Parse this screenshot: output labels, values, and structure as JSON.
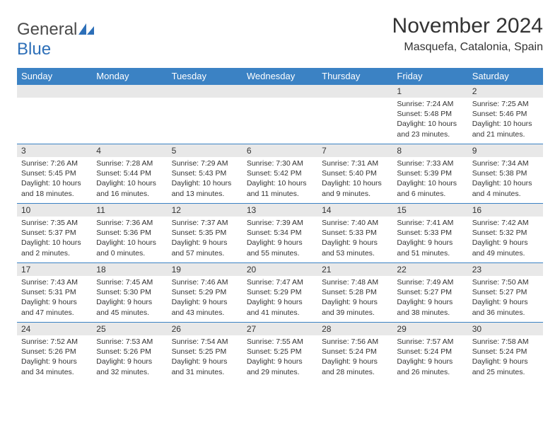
{
  "logo": {
    "text_general": "General",
    "text_blue": "Blue"
  },
  "header": {
    "month_title": "November 2024",
    "location": "Masquefa, Catalonia, Spain"
  },
  "colors": {
    "header_bg": "#3b82c4",
    "header_fg": "#ffffff",
    "daynum_bg": "#e8e8e8",
    "border": "#3b82c4",
    "logo_blue": "#2d6fb8",
    "text": "#333333"
  },
  "weekdays": [
    "Sunday",
    "Monday",
    "Tuesday",
    "Wednesday",
    "Thursday",
    "Friday",
    "Saturday"
  ],
  "weeks": [
    [
      {
        "empty": true
      },
      {
        "empty": true
      },
      {
        "empty": true
      },
      {
        "empty": true
      },
      {
        "empty": true
      },
      {
        "day": "1",
        "sunrise": "Sunrise: 7:24 AM",
        "sunset": "Sunset: 5:48 PM",
        "daylight": "Daylight: 10 hours and 23 minutes."
      },
      {
        "day": "2",
        "sunrise": "Sunrise: 7:25 AM",
        "sunset": "Sunset: 5:46 PM",
        "daylight": "Daylight: 10 hours and 21 minutes."
      }
    ],
    [
      {
        "day": "3",
        "sunrise": "Sunrise: 7:26 AM",
        "sunset": "Sunset: 5:45 PM",
        "daylight": "Daylight: 10 hours and 18 minutes."
      },
      {
        "day": "4",
        "sunrise": "Sunrise: 7:28 AM",
        "sunset": "Sunset: 5:44 PM",
        "daylight": "Daylight: 10 hours and 16 minutes."
      },
      {
        "day": "5",
        "sunrise": "Sunrise: 7:29 AM",
        "sunset": "Sunset: 5:43 PM",
        "daylight": "Daylight: 10 hours and 13 minutes."
      },
      {
        "day": "6",
        "sunrise": "Sunrise: 7:30 AM",
        "sunset": "Sunset: 5:42 PM",
        "daylight": "Daylight: 10 hours and 11 minutes."
      },
      {
        "day": "7",
        "sunrise": "Sunrise: 7:31 AM",
        "sunset": "Sunset: 5:40 PM",
        "daylight": "Daylight: 10 hours and 9 minutes."
      },
      {
        "day": "8",
        "sunrise": "Sunrise: 7:33 AM",
        "sunset": "Sunset: 5:39 PM",
        "daylight": "Daylight: 10 hours and 6 minutes."
      },
      {
        "day": "9",
        "sunrise": "Sunrise: 7:34 AM",
        "sunset": "Sunset: 5:38 PM",
        "daylight": "Daylight: 10 hours and 4 minutes."
      }
    ],
    [
      {
        "day": "10",
        "sunrise": "Sunrise: 7:35 AM",
        "sunset": "Sunset: 5:37 PM",
        "daylight": "Daylight: 10 hours and 2 minutes."
      },
      {
        "day": "11",
        "sunrise": "Sunrise: 7:36 AM",
        "sunset": "Sunset: 5:36 PM",
        "daylight": "Daylight: 10 hours and 0 minutes."
      },
      {
        "day": "12",
        "sunrise": "Sunrise: 7:37 AM",
        "sunset": "Sunset: 5:35 PM",
        "daylight": "Daylight: 9 hours and 57 minutes."
      },
      {
        "day": "13",
        "sunrise": "Sunrise: 7:39 AM",
        "sunset": "Sunset: 5:34 PM",
        "daylight": "Daylight: 9 hours and 55 minutes."
      },
      {
        "day": "14",
        "sunrise": "Sunrise: 7:40 AM",
        "sunset": "Sunset: 5:33 PM",
        "daylight": "Daylight: 9 hours and 53 minutes."
      },
      {
        "day": "15",
        "sunrise": "Sunrise: 7:41 AM",
        "sunset": "Sunset: 5:33 PM",
        "daylight": "Daylight: 9 hours and 51 minutes."
      },
      {
        "day": "16",
        "sunrise": "Sunrise: 7:42 AM",
        "sunset": "Sunset: 5:32 PM",
        "daylight": "Daylight: 9 hours and 49 minutes."
      }
    ],
    [
      {
        "day": "17",
        "sunrise": "Sunrise: 7:43 AM",
        "sunset": "Sunset: 5:31 PM",
        "daylight": "Daylight: 9 hours and 47 minutes."
      },
      {
        "day": "18",
        "sunrise": "Sunrise: 7:45 AM",
        "sunset": "Sunset: 5:30 PM",
        "daylight": "Daylight: 9 hours and 45 minutes."
      },
      {
        "day": "19",
        "sunrise": "Sunrise: 7:46 AM",
        "sunset": "Sunset: 5:29 PM",
        "daylight": "Daylight: 9 hours and 43 minutes."
      },
      {
        "day": "20",
        "sunrise": "Sunrise: 7:47 AM",
        "sunset": "Sunset: 5:29 PM",
        "daylight": "Daylight: 9 hours and 41 minutes."
      },
      {
        "day": "21",
        "sunrise": "Sunrise: 7:48 AM",
        "sunset": "Sunset: 5:28 PM",
        "daylight": "Daylight: 9 hours and 39 minutes."
      },
      {
        "day": "22",
        "sunrise": "Sunrise: 7:49 AM",
        "sunset": "Sunset: 5:27 PM",
        "daylight": "Daylight: 9 hours and 38 minutes."
      },
      {
        "day": "23",
        "sunrise": "Sunrise: 7:50 AM",
        "sunset": "Sunset: 5:27 PM",
        "daylight": "Daylight: 9 hours and 36 minutes."
      }
    ],
    [
      {
        "day": "24",
        "sunrise": "Sunrise: 7:52 AM",
        "sunset": "Sunset: 5:26 PM",
        "daylight": "Daylight: 9 hours and 34 minutes."
      },
      {
        "day": "25",
        "sunrise": "Sunrise: 7:53 AM",
        "sunset": "Sunset: 5:26 PM",
        "daylight": "Daylight: 9 hours and 32 minutes."
      },
      {
        "day": "26",
        "sunrise": "Sunrise: 7:54 AM",
        "sunset": "Sunset: 5:25 PM",
        "daylight": "Daylight: 9 hours and 31 minutes."
      },
      {
        "day": "27",
        "sunrise": "Sunrise: 7:55 AM",
        "sunset": "Sunset: 5:25 PM",
        "daylight": "Daylight: 9 hours and 29 minutes."
      },
      {
        "day": "28",
        "sunrise": "Sunrise: 7:56 AM",
        "sunset": "Sunset: 5:24 PM",
        "daylight": "Daylight: 9 hours and 28 minutes."
      },
      {
        "day": "29",
        "sunrise": "Sunrise: 7:57 AM",
        "sunset": "Sunset: 5:24 PM",
        "daylight": "Daylight: 9 hours and 26 minutes."
      },
      {
        "day": "30",
        "sunrise": "Sunrise: 7:58 AM",
        "sunset": "Sunset: 5:24 PM",
        "daylight": "Daylight: 9 hours and 25 minutes."
      }
    ]
  ]
}
